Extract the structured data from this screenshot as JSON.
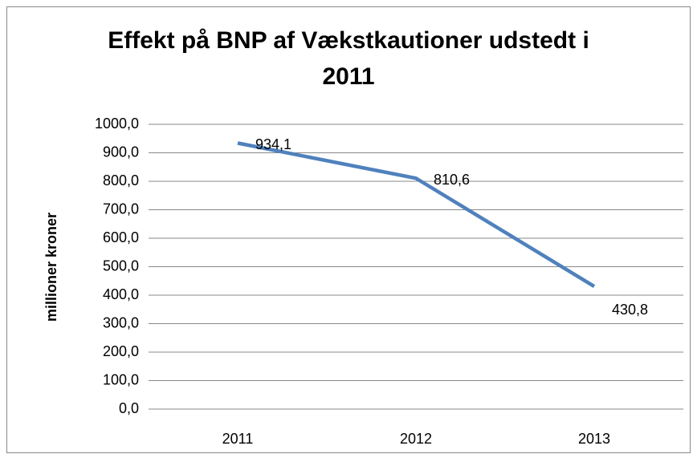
{
  "chart_data": {
    "type": "line",
    "title": "Effekt på BNP af Vækstkautioner udstedt i 2011",
    "y_label": "millioner kroner",
    "categories": [
      "2011",
      "2012",
      "2013"
    ],
    "series": [
      {
        "name": "Effekt på BNP",
        "color": "#4f81bd",
        "values": [
          934.1,
          810.6,
          430.8
        ],
        "value_labels": [
          "934,1",
          "810,6",
          "430,8"
        ]
      }
    ],
    "ylim": [
      0,
      1000
    ],
    "yticks": [
      {
        "value": 0,
        "label": "0,0"
      },
      {
        "value": 100,
        "label": "100,0"
      },
      {
        "value": 200,
        "label": "200,0"
      },
      {
        "value": 300,
        "label": "300,0"
      },
      {
        "value": 400,
        "label": "400,0"
      },
      {
        "value": 500,
        "label": "500,0"
      },
      {
        "value": 600,
        "label": "600,0"
      },
      {
        "value": 700,
        "label": "700,0"
      },
      {
        "value": 800,
        "label": "800,0"
      },
      {
        "value": 900,
        "label": "900,0"
      },
      {
        "value": 1000,
        "label": "1000,0"
      }
    ],
    "grid": true
  }
}
